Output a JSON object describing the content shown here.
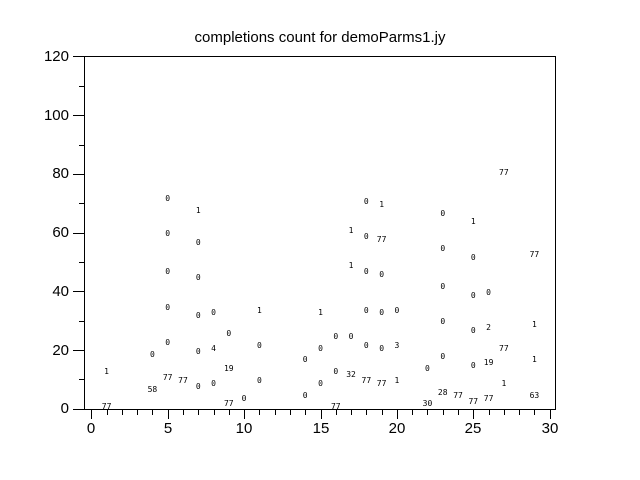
{
  "window": {
    "background_color": "#ffffff",
    "axis_color": "#000000",
    "text_color": "#000000"
  },
  "chart_data": {
    "type": "scatter",
    "title": "completions count for demoParms1.jy",
    "xlabel": "",
    "ylabel": "",
    "xlim": [
      0,
      30
    ],
    "ylim": [
      0,
      120
    ],
    "grid": "off",
    "legend": "none",
    "marker_style": "numeric-text-labels",
    "x_major_ticks": [
      0,
      5,
      10,
      15,
      20,
      25,
      30
    ],
    "x_minor_tick_step": 1,
    "y_major_ticks": [
      0,
      20,
      40,
      60,
      80,
      100,
      120
    ],
    "y_minor_tick_step": 10,
    "points": [
      {
        "x": 1,
        "y": 12,
        "label": "1"
      },
      {
        "x": 1,
        "y": 0,
        "label": "77"
      },
      {
        "x": 4,
        "y": 18,
        "label": "0"
      },
      {
        "x": 4,
        "y": 6,
        "label": "58"
      },
      {
        "x": 5,
        "y": 71,
        "label": "0"
      },
      {
        "x": 5,
        "y": 59,
        "label": "0"
      },
      {
        "x": 5,
        "y": 46,
        "label": "0"
      },
      {
        "x": 5,
        "y": 34,
        "label": "0"
      },
      {
        "x": 5,
        "y": 22,
        "label": "0"
      },
      {
        "x": 5,
        "y": 10,
        "label": "77"
      },
      {
        "x": 6,
        "y": 9,
        "label": "77"
      },
      {
        "x": 7,
        "y": 67,
        "label": "1"
      },
      {
        "x": 7,
        "y": 56,
        "label": "0"
      },
      {
        "x": 7,
        "y": 44,
        "label": "0"
      },
      {
        "x": 7,
        "y": 31,
        "label": "0"
      },
      {
        "x": 7,
        "y": 19,
        "label": "0"
      },
      {
        "x": 7,
        "y": 7,
        "label": "0"
      },
      {
        "x": 8,
        "y": 32,
        "label": "0"
      },
      {
        "x": 8,
        "y": 20,
        "label": "4"
      },
      {
        "x": 8,
        "y": 8,
        "label": "0"
      },
      {
        "x": 9,
        "y": 25,
        "label": "0"
      },
      {
        "x": 9,
        "y": 13,
        "label": "19"
      },
      {
        "x": 9,
        "y": 1,
        "label": "77"
      },
      {
        "x": 10,
        "y": 3,
        "label": "0"
      },
      {
        "x": 11,
        "y": 33,
        "label": "1"
      },
      {
        "x": 11,
        "y": 21,
        "label": "0"
      },
      {
        "x": 11,
        "y": 9,
        "label": "0"
      },
      {
        "x": 14,
        "y": 16,
        "label": "0"
      },
      {
        "x": 14,
        "y": 4,
        "label": "0"
      },
      {
        "x": 15,
        "y": 32,
        "label": "1"
      },
      {
        "x": 15,
        "y": 20,
        "label": "0"
      },
      {
        "x": 15,
        "y": 8,
        "label": "0"
      },
      {
        "x": 16,
        "y": 24,
        "label": "0"
      },
      {
        "x": 16,
        "y": 12,
        "label": "0"
      },
      {
        "x": 16,
        "y": 0,
        "label": "77"
      },
      {
        "x": 17,
        "y": 60,
        "label": "1"
      },
      {
        "x": 17,
        "y": 48,
        "label": "1"
      },
      {
        "x": 17,
        "y": 24,
        "label": "0"
      },
      {
        "x": 17,
        "y": 11,
        "label": "32"
      },
      {
        "x": 18,
        "y": 70,
        "label": "0"
      },
      {
        "x": 18,
        "y": 58,
        "label": "0"
      },
      {
        "x": 18,
        "y": 46,
        "label": "0"
      },
      {
        "x": 18,
        "y": 33,
        "label": "0"
      },
      {
        "x": 18,
        "y": 21,
        "label": "0"
      },
      {
        "x": 18,
        "y": 9,
        "label": "77"
      },
      {
        "x": 19,
        "y": 69,
        "label": "1"
      },
      {
        "x": 19,
        "y": 57,
        "label": "77"
      },
      {
        "x": 19,
        "y": 45,
        "label": "0"
      },
      {
        "x": 19,
        "y": 32,
        "label": "0"
      },
      {
        "x": 19,
        "y": 20,
        "label": "0"
      },
      {
        "x": 19,
        "y": 8,
        "label": "77"
      },
      {
        "x": 20,
        "y": 33,
        "label": "0"
      },
      {
        "x": 20,
        "y": 21,
        "label": "3"
      },
      {
        "x": 20,
        "y": 9,
        "label": "1"
      },
      {
        "x": 22,
        "y": 13,
        "label": "0"
      },
      {
        "x": 22,
        "y": 1,
        "label": "30"
      },
      {
        "x": 23,
        "y": 66,
        "label": "0"
      },
      {
        "x": 23,
        "y": 54,
        "label": "0"
      },
      {
        "x": 23,
        "y": 41,
        "label": "0"
      },
      {
        "x": 23,
        "y": 29,
        "label": "0"
      },
      {
        "x": 23,
        "y": 17,
        "label": "0"
      },
      {
        "x": 23,
        "y": 5,
        "label": "28"
      },
      {
        "x": 24,
        "y": 4,
        "label": "77"
      },
      {
        "x": 25,
        "y": 63,
        "label": "1"
      },
      {
        "x": 25,
        "y": 51,
        "label": "0"
      },
      {
        "x": 25,
        "y": 38,
        "label": "0"
      },
      {
        "x": 25,
        "y": 26,
        "label": "0"
      },
      {
        "x": 25,
        "y": 14,
        "label": "0"
      },
      {
        "x": 25,
        "y": 2,
        "label": "77"
      },
      {
        "x": 26,
        "y": 39,
        "label": "0"
      },
      {
        "x": 26,
        "y": 27,
        "label": "2"
      },
      {
        "x": 26,
        "y": 15,
        "label": "19"
      },
      {
        "x": 26,
        "y": 3,
        "label": "77"
      },
      {
        "x": 27,
        "y": 80,
        "label": "77"
      },
      {
        "x": 27,
        "y": 20,
        "label": "77"
      },
      {
        "x": 27,
        "y": 8,
        "label": "1"
      },
      {
        "x": 29,
        "y": 52,
        "label": "77"
      },
      {
        "x": 29,
        "y": 28,
        "label": "1"
      },
      {
        "x": 29,
        "y": 16,
        "label": "1"
      },
      {
        "x": 29,
        "y": 4,
        "label": "63"
      }
    ]
  }
}
